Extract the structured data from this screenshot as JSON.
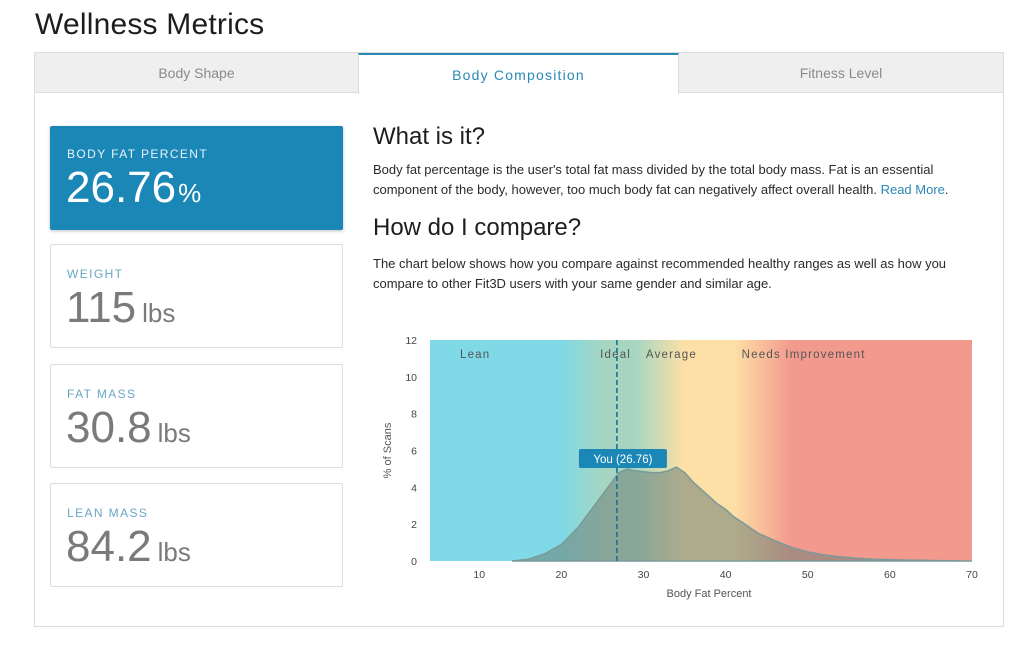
{
  "page": {
    "title": "Wellness Metrics"
  },
  "tabs": [
    {
      "label": "Body Shape",
      "active": false
    },
    {
      "label": "Body Composition",
      "active": true
    },
    {
      "label": "Fitness Level",
      "active": false
    }
  ],
  "metrics": [
    {
      "label": "BODY FAT PERCENT",
      "value": "26.76",
      "unit": "%",
      "active": true
    },
    {
      "label": "WEIGHT",
      "value": "115",
      "unit": "lbs",
      "active": false
    },
    {
      "label": "FAT MASS",
      "value": "30.8",
      "unit": "lbs",
      "active": false
    },
    {
      "label": "LEAN MASS",
      "value": "84.2",
      "unit": "lbs",
      "active": false
    }
  ],
  "content": {
    "what_heading": "What is it?",
    "what_text": "Body fat percentage is the user's total fat mass divided by the total body mass. Fat is an essential component of the body, however, too much body fat can negatively affect overall health.",
    "read_more": "Read More",
    "read_more_after": ".",
    "compare_heading": "How do I compare?",
    "compare_text": "The chart below shows how you compare against recommended healthy ranges as well as how you compare to other Fit3D users with your same gender and similar age."
  },
  "colors": {
    "accent": "#1a87b7",
    "link": "#2a88b4",
    "lean": "#7fd9e6",
    "ideal": "#a6d6c2",
    "average": "#fde0a6",
    "needs_improvement": "#f39a8f",
    "distribution": "#7a9a9a"
  },
  "chart_data": {
    "type": "area",
    "xlabel": "Body Fat Percent",
    "ylabel": "% of Scans",
    "xlim": [
      4,
      70
    ],
    "ylim": [
      0,
      12
    ],
    "x_ticks": [
      10,
      20,
      30,
      40,
      50,
      60,
      70
    ],
    "y_ticks": [
      0,
      2,
      4,
      6,
      8,
      10,
      12
    ],
    "ranges": [
      {
        "label": "Lean",
        "from": 4,
        "to": 21
      },
      {
        "label": "Ideal",
        "from": 21,
        "to": 30
      },
      {
        "label": "Average",
        "from": 30,
        "to": 39
      },
      {
        "label": "Needs Improvement",
        "from": 39,
        "to": 70
      }
    ],
    "marker": {
      "x": 26.76,
      "label": "You (26.76)"
    },
    "x": [
      14,
      16,
      18,
      20,
      22,
      24,
      26,
      27,
      28,
      29,
      30,
      31,
      32,
      33,
      34,
      35,
      36,
      37,
      38,
      39,
      40,
      41,
      42,
      44,
      46,
      48,
      50,
      52,
      54,
      56,
      58,
      60,
      62,
      64,
      66,
      70
    ],
    "values": [
      0,
      0.1,
      0.4,
      0.9,
      1.8,
      3.0,
      4.2,
      4.8,
      5.0,
      4.9,
      4.85,
      4.8,
      4.8,
      4.9,
      5.1,
      4.8,
      4.3,
      3.9,
      3.5,
      3.1,
      2.8,
      2.4,
      2.1,
      1.5,
      1.1,
      0.75,
      0.5,
      0.33,
      0.22,
      0.15,
      0.1,
      0.07,
      0.05,
      0.04,
      0.02,
      0
    ]
  }
}
